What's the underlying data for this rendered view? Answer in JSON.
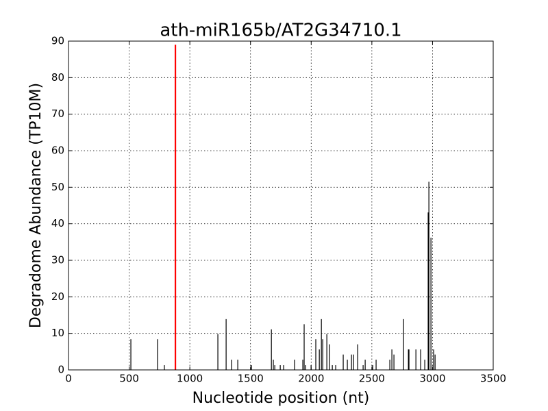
{
  "chart_data": {
    "type": "bar",
    "title": "ath-miR165b/AT2G34710.1",
    "xlabel": "Nucleotide position (nt)",
    "ylabel": "Degradome Abundance (TP10M)",
    "xlim": [
      0,
      3500
    ],
    "ylim": [
      0,
      90
    ],
    "xticks": [
      0,
      500,
      1000,
      1500,
      2000,
      2500,
      3000,
      3500
    ],
    "yticks": [
      0,
      10,
      20,
      30,
      40,
      50,
      60,
      70,
      80,
      90
    ],
    "grid": true,
    "series": [
      {
        "color": "#000000",
        "x": [
          514,
          734,
          790,
          1231,
          1299,
          1344,
          1395,
          1508,
          1672,
          1688,
          1700,
          1745,
          1773,
          1863,
          1931,
          1942,
          1954,
          1999,
          2038,
          2067,
          2084,
          2095,
          2129,
          2151,
          2174,
          2202,
          2264,
          2298,
          2332,
          2349,
          2383,
          2428,
          2445,
          2507,
          2535,
          2648,
          2665,
          2682,
          2761,
          2801,
          2806,
          2863,
          2902,
          2936,
          2964,
          2970,
          2987,
          3009,
          3021
        ],
        "values": [
          8.4,
          8.4,
          1.3,
          9.8,
          13.9,
          2.8,
          2.8,
          1.3,
          11.1,
          2.8,
          1.3,
          1.3,
          1.3,
          2.8,
          2.8,
          12.5,
          1.3,
          1.3,
          8.4,
          5.6,
          13.9,
          8.4,
          9.8,
          7.0,
          1.3,
          1.3,
          4.2,
          2.8,
          4.2,
          4.2,
          7.0,
          1.3,
          2.8,
          1.3,
          2.8,
          2.8,
          5.6,
          4.2,
          13.9,
          5.6,
          5.6,
          5.6,
          5.6,
          2.8,
          43.1,
          51.5,
          36.2,
          5.6,
          4.2
        ]
      },
      {
        "color": "#ff0000",
        "x": [
          881
        ],
        "values": [
          89
        ]
      }
    ]
  }
}
